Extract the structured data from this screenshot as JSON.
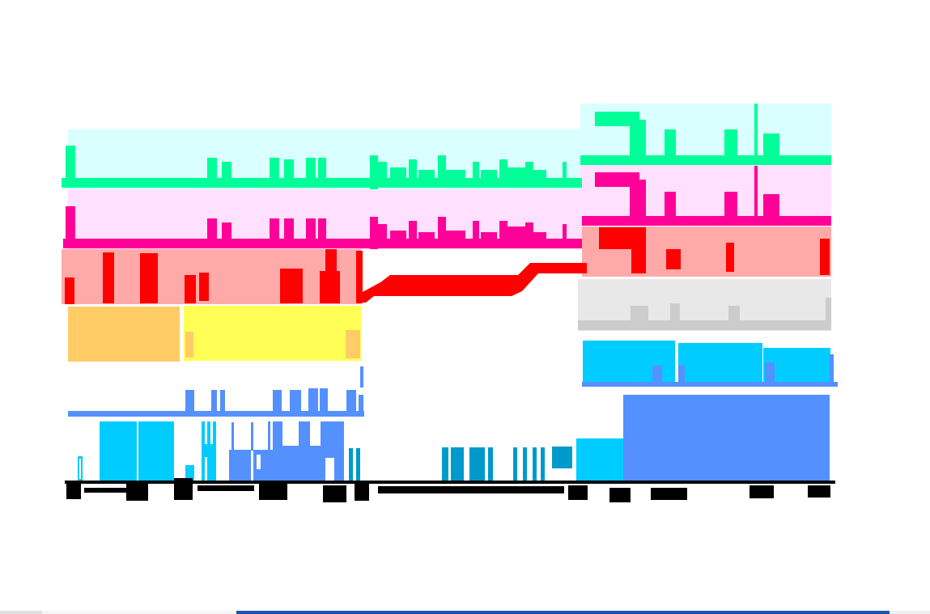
{
  "diagram": {
    "layers": [
      {
        "name": "green-profile",
        "color": "#00ff99",
        "band_color": "#d9ffff"
      },
      {
        "name": "magenta-profile",
        "color": "#ff0099",
        "band_color": "#ffe0ff"
      },
      {
        "name": "red-band",
        "color": "#ff0000",
        "band_color": "#ffa9a9"
      },
      {
        "name": "orange-block",
        "color": "#ffcc66"
      },
      {
        "name": "yellow-block",
        "color": "#ffff55"
      },
      {
        "name": "gray-band",
        "color": "#cccccc",
        "band_color": "#e8e8e8"
      },
      {
        "name": "cyan-band",
        "color": "#00ccff"
      },
      {
        "name": "blue-profile",
        "color": "#5590ff"
      },
      {
        "name": "dark-cyan-bars",
        "color": "#0099cc"
      },
      {
        "name": "baseline",
        "color": "#000000"
      }
    ]
  },
  "bottom_strip": {
    "colors": [
      "#e0e0e0",
      "#f5f5f5",
      "#1a56b0",
      "#f0f0f0"
    ]
  }
}
